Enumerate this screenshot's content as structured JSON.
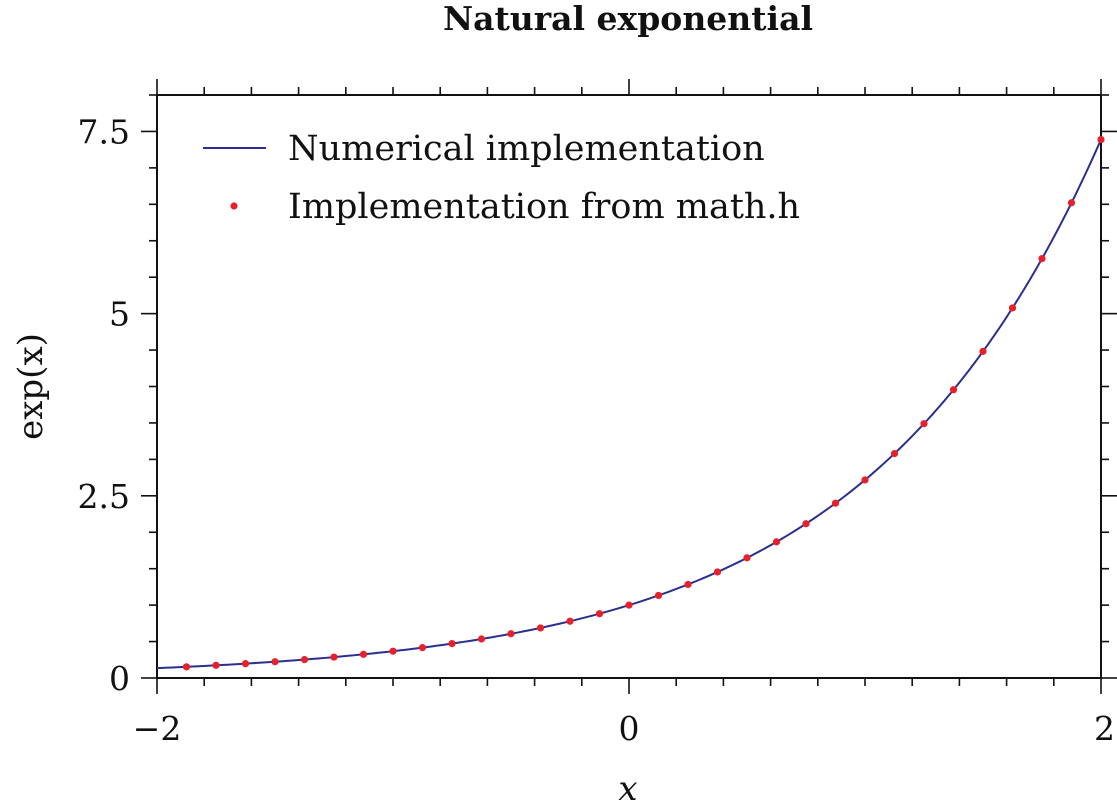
{
  "chart_data": {
    "type": "line",
    "title": "Natural exponential",
    "xlabel": "x",
    "ylabel": "exp(x)",
    "xlim": [
      -2,
      2
    ],
    "ylim": [
      0,
      8
    ],
    "xticks": [
      {
        "value": -2,
        "label": "−2"
      },
      {
        "value": 0,
        "label": "0"
      },
      {
        "value": 2,
        "label": "2"
      }
    ],
    "yticks": [
      {
        "value": 0,
        "label": "0"
      },
      {
        "value": 2.5,
        "label": "2.5"
      },
      {
        "value": 5,
        "label": "5"
      },
      {
        "value": 7.5,
        "label": "7.5"
      }
    ],
    "x_minor_step": 0.2,
    "y_minor_step": 0.5,
    "grid": false,
    "legend_position": "top-left",
    "series": [
      {
        "name": "Numerical implementation",
        "kind": "line",
        "color": "#2b2f8f",
        "function": "exp",
        "x_range": [
          -2,
          2
        ]
      },
      {
        "name": "Implementation from math.h",
        "kind": "points",
        "color": "#e8202a",
        "x": [
          -1.875,
          -1.75,
          -1.625,
          -1.5,
          -1.375,
          -1.25,
          -1.125,
          -1.0,
          -0.875,
          -0.75,
          -0.625,
          -0.5,
          -0.375,
          -0.25,
          -0.125,
          0.0,
          0.125,
          0.25,
          0.375,
          0.5,
          0.625,
          0.75,
          0.875,
          1.0,
          1.125,
          1.25,
          1.375,
          1.5,
          1.625,
          1.75,
          1.875,
          2.0
        ],
        "y": [
          0.153,
          0.174,
          0.197,
          0.223,
          0.253,
          0.287,
          0.325,
          0.368,
          0.417,
          0.472,
          0.535,
          0.607,
          0.687,
          0.779,
          0.882,
          1.0,
          1.133,
          1.284,
          1.455,
          1.649,
          1.868,
          2.117,
          2.399,
          2.718,
          3.08,
          3.49,
          3.955,
          4.482,
          5.078,
          5.755,
          6.521,
          7.389
        ]
      }
    ]
  }
}
